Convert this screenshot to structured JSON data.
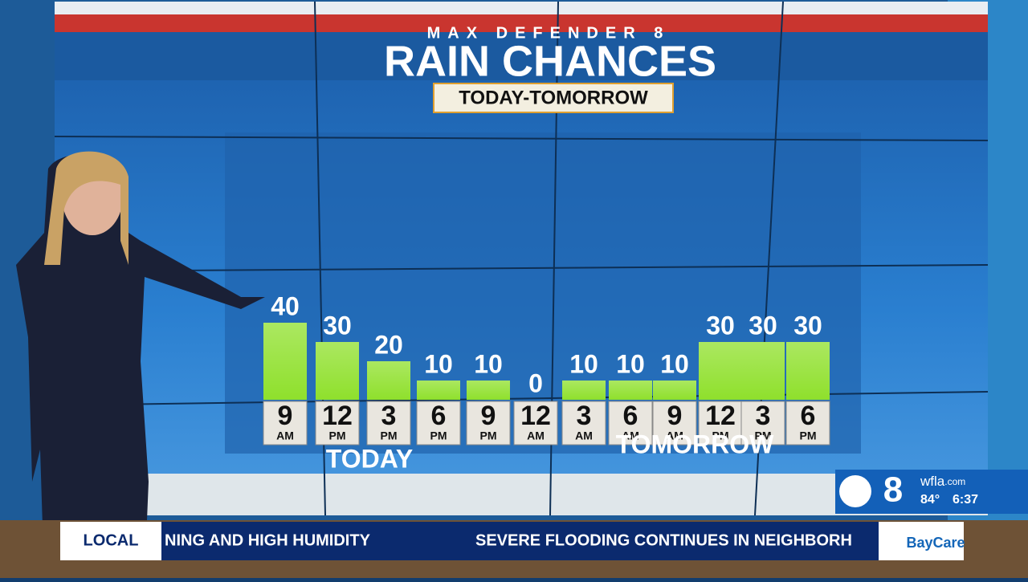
{
  "chart_data": {
    "type": "bar",
    "supertitle": "MAX DEFENDER 8",
    "title": "RAIN CHANCES",
    "subtitle": "TODAY-TOMORROW",
    "categories": [
      "9",
      "12",
      "3",
      "6",
      "9",
      "12",
      "3",
      "6",
      "9",
      "12",
      "3",
      "6"
    ],
    "category_periods": [
      "AM",
      "PM",
      "PM",
      "PM",
      "PM",
      "AM",
      "AM",
      "AM",
      "AM",
      "PM",
      "PM",
      "PM"
    ],
    "values": [
      40,
      30,
      20,
      10,
      10,
      0,
      10,
      10,
      10,
      30,
      30,
      30
    ],
    "groups": [
      "TODAY",
      "TOMORROW"
    ],
    "color": "#8fe02c"
  },
  "ticker": {
    "section": "LOCAL",
    "headline_1": "NING AND HIGH HUMIDITY",
    "headline_2": "SEVERE FLOODING CONTINUES IN NEIGHBORH",
    "sponsor": "BayCare"
  },
  "station_bug": {
    "channel": "8",
    "site": "wfla",
    "site_suffix": ".com",
    "temperature": "84°",
    "time": "6:37"
  }
}
